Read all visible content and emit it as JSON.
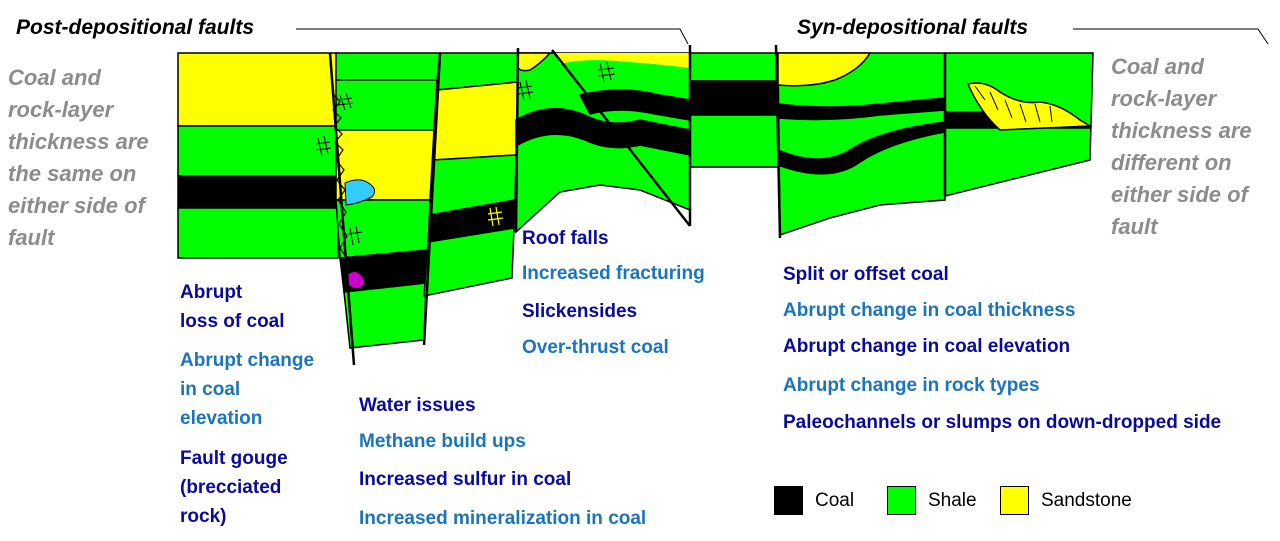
{
  "headers": {
    "post": "Post-depositional faults",
    "syn": "Syn-depositional faults"
  },
  "side_notes": {
    "left": "Coal and\nrock-layer\nthickness are\nthe same on\neither side of\nfault",
    "right": "Coal and\nrock-layer\nthickness are\ndifferent on\neither side of\nfault"
  },
  "labels": {
    "abrupt_loss": "Abrupt\nloss of coal",
    "abrupt_change_elev": "Abrupt change\nin coal\nelevation",
    "fault_gouge": "Fault gouge\n(brecciated\nrock)",
    "water": "Water issues",
    "methane": "Methane build ups",
    "sulfur": "Increased sulfur in coal",
    "mineralization": "Increased mineralization in coal",
    "roof_falls": "Roof falls",
    "fracturing": "Increased fracturing",
    "slickensides": "Slickensides",
    "over_thrust": "Over-thrust coal",
    "split_coal": "Split or offset coal",
    "thickness_change": "Abrupt change in coal thickness",
    "elevation_change": "Abrupt change in coal elevation",
    "rock_types": "Abrupt change in rock types",
    "paleochannels": "Paleochannels or slumps on down-dropped  side"
  },
  "legend": [
    {
      "label": "Coal",
      "color": "#000000"
    },
    {
      "label": "Shale",
      "color": "#00ff00"
    },
    {
      "label": "Sandstone",
      "color": "#ffff00"
    }
  ],
  "colors": {
    "coal": "#000000",
    "shale": "#00ff00",
    "sandstone": "#ffff00",
    "water": "#33ccff",
    "sulfur": "#cc00cc",
    "dark_text": "#0a0a9c",
    "light_text": "#1b75bb",
    "note_text": "#8c8c8c"
  }
}
